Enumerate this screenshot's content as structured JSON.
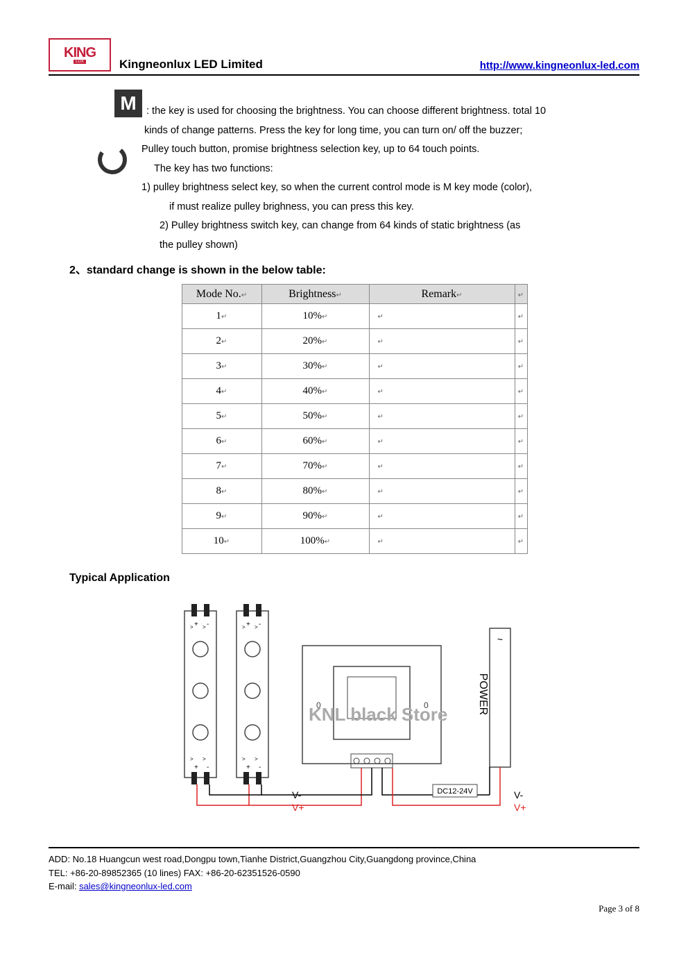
{
  "logo": {
    "main": "KING",
    "sub": "LUX"
  },
  "header": {
    "company": "Kingneonlux LED Limited",
    "url": "http://www.kingneonlux-led.com"
  },
  "mKey": {
    "symbol": "M",
    "line1": ": the key is used for choosing the brightness. You can choose different brightness. total 10",
    "line2": "kinds of change patterns. Press the key for long time, you can turn on/ off the buzzer;"
  },
  "pulley": {
    "line1": "Pulley touch button, promise brightness selection key, up to 64 touch points.",
    "line2": "The key has two functions:",
    "line3": "1) pulley brightness select key, so when the current control mode is M key mode (color),",
    "line4": "if must realize pulley brighness, you can press this key.",
    "line5": " 2) Pulley brightness switch key, can change from 64 kinds of static brightness (as",
    "line6": "the pulley shown)"
  },
  "section2": "2、standard change is shown in the below table:",
  "table": {
    "headers": {
      "mode": "Mode No.",
      "brightness": "Brightness",
      "remark": "Remark"
    },
    "rows": [
      {
        "mode": "1",
        "brightness": "10%",
        "remark": ""
      },
      {
        "mode": "2",
        "brightness": "20%",
        "remark": ""
      },
      {
        "mode": "3",
        "brightness": "30%",
        "remark": ""
      },
      {
        "mode": "4",
        "brightness": "40%",
        "remark": ""
      },
      {
        "mode": "5",
        "brightness": "50%",
        "remark": ""
      },
      {
        "mode": "6",
        "brightness": "60%",
        "remark": ""
      },
      {
        "mode": "7",
        "brightness": "70%",
        "remark": ""
      },
      {
        "mode": "8",
        "brightness": "80%",
        "remark": ""
      },
      {
        "mode": "9",
        "brightness": "90%",
        "remark": ""
      },
      {
        "mode": "10",
        "brightness": "100%",
        "remark": ""
      }
    ],
    "paraGlyph": "↵"
  },
  "watermark": "KNL black Store",
  "typical": "Typical Application",
  "diagram": {
    "powerLabel": "POWER",
    "dcLabel": "DC12-24V",
    "vMinus": "V-",
    "vPlus": "V+",
    "vPlusLabel": "V+",
    "vMinusLabel": "V-",
    "tilde": "~",
    "strip_color": "#222",
    "controller_stroke": "#444",
    "wire_red": "#d22",
    "wire_black": "#000",
    "bg": "#fff"
  },
  "footer": {
    "add": "ADD: No.18 Huangcun west road,Dongpu town,Tianhe District,Guangzhou City,Guangdong province,China",
    "tel": "TEL: +86-20-89852365 (10 lines) FAX: +86-20-62351526-0590",
    "emailLabel": "E-mail: ",
    "email": "sales@kingneonlux-led.com"
  },
  "pageNum": "Page 3 of 8"
}
